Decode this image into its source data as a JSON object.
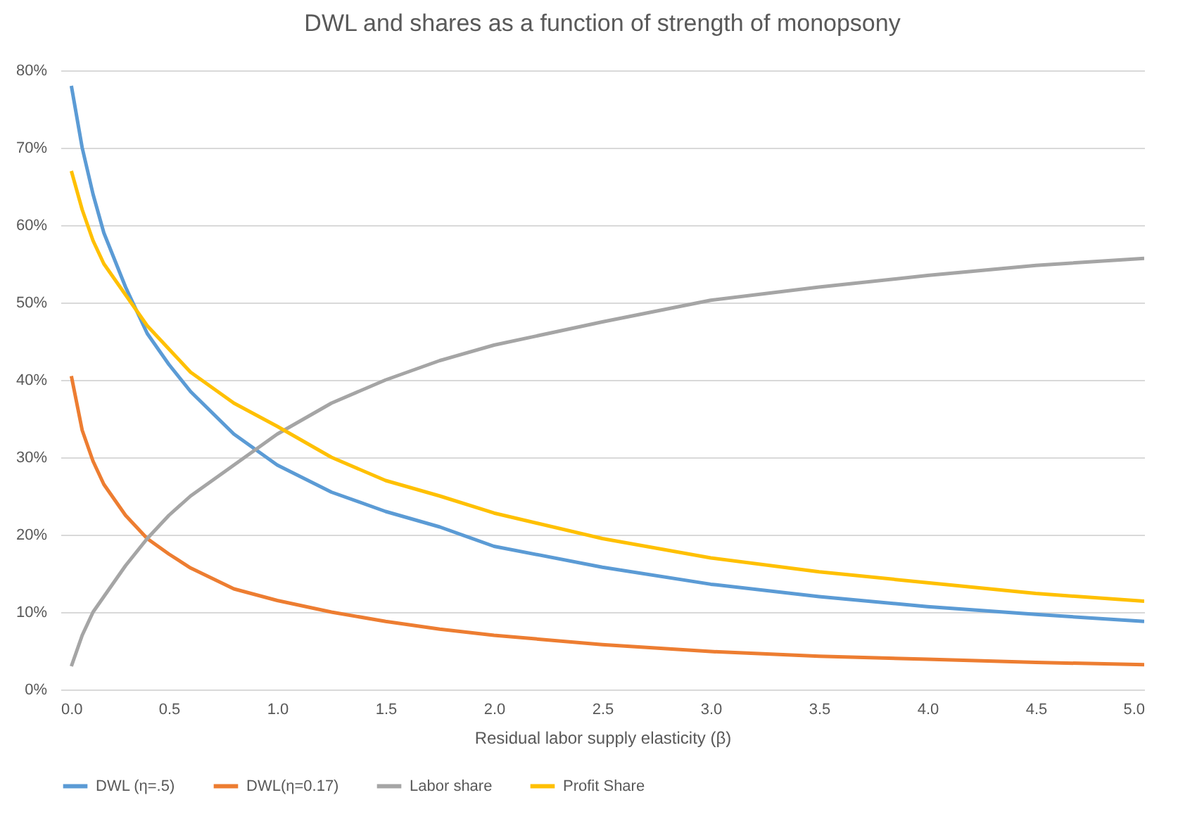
{
  "chart_data": {
    "type": "line",
    "title": "DWL and shares as a function of strength of monopsony",
    "xlabel": "Residual labor supply elasticity (β)",
    "x": [
      0.05,
      0.1,
      0.15,
      0.2,
      0.3,
      0.4,
      0.5,
      0.6,
      0.8,
      1.0,
      1.25,
      1.5,
      1.75,
      2.0,
      2.5,
      3.0,
      3.5,
      4.0,
      4.5,
      5.0
    ],
    "series": [
      {
        "name": "DWL (η=.5)",
        "color": "#5b9bd5",
        "values": [
          78,
          70,
          64,
          59,
          52,
          46,
          42,
          38.5,
          33,
          29,
          25.5,
          23,
          21,
          18.5,
          15.8,
          13.6,
          12,
          10.7,
          9.7,
          8.8
        ]
      },
      {
        "name": "DWL(η=0.17)",
        "color": "#ed7d31",
        "values": [
          40.5,
          33.5,
          29.5,
          26.5,
          22.5,
          19.5,
          17.5,
          15.7,
          13,
          11.5,
          10,
          8.8,
          7.8,
          7,
          5.8,
          4.9,
          4.3,
          3.9,
          3.5,
          3.2
        ]
      },
      {
        "name": "Labor share",
        "color": "#a5a5a5",
        "values": [
          3,
          7,
          10,
          12,
          16,
          19.5,
          22.5,
          25,
          29,
          33,
          37,
          40,
          42.5,
          44.5,
          47.5,
          50.3,
          52,
          53.5,
          54.8,
          55.7
        ]
      },
      {
        "name": "Profit Share",
        "color": "#ffc000",
        "values": [
          67,
          62,
          58,
          55,
          51,
          47,
          44,
          41,
          37,
          34,
          30,
          27,
          25,
          22.8,
          19.5,
          17,
          15.2,
          13.8,
          12.4,
          11.4
        ]
      }
    ],
    "xlim": [
      0,
      5
    ],
    "xticks": [
      {
        "value": 0,
        "label": "0.0"
      },
      {
        "value": 0.5,
        "label": "0.5"
      },
      {
        "value": 1,
        "label": "1.0"
      },
      {
        "value": 1.5,
        "label": "1.5"
      },
      {
        "value": 2,
        "label": "2.0"
      },
      {
        "value": 2.5,
        "label": "2.5"
      },
      {
        "value": 3,
        "label": "3.0"
      },
      {
        "value": 3.5,
        "label": "3.5"
      },
      {
        "value": 4,
        "label": "4.0"
      },
      {
        "value": 4.5,
        "label": "4.5"
      },
      {
        "value": 5,
        "label": "5.0"
      }
    ],
    "ylim": [
      0,
      80
    ],
    "yticks": [
      {
        "value": 0,
        "label": "0%"
      },
      {
        "value": 10,
        "label": "10%"
      },
      {
        "value": 20,
        "label": "20%"
      },
      {
        "value": 30,
        "label": "30%"
      },
      {
        "value": 40,
        "label": "40%"
      },
      {
        "value": 50,
        "label": "50%"
      },
      {
        "value": 60,
        "label": "60%"
      },
      {
        "value": 70,
        "label": "70%"
      },
      {
        "value": 80,
        "label": "80%"
      }
    ],
    "grid": "y",
    "legend": "bottom",
    "marker": "none",
    "line_style": "solid"
  }
}
